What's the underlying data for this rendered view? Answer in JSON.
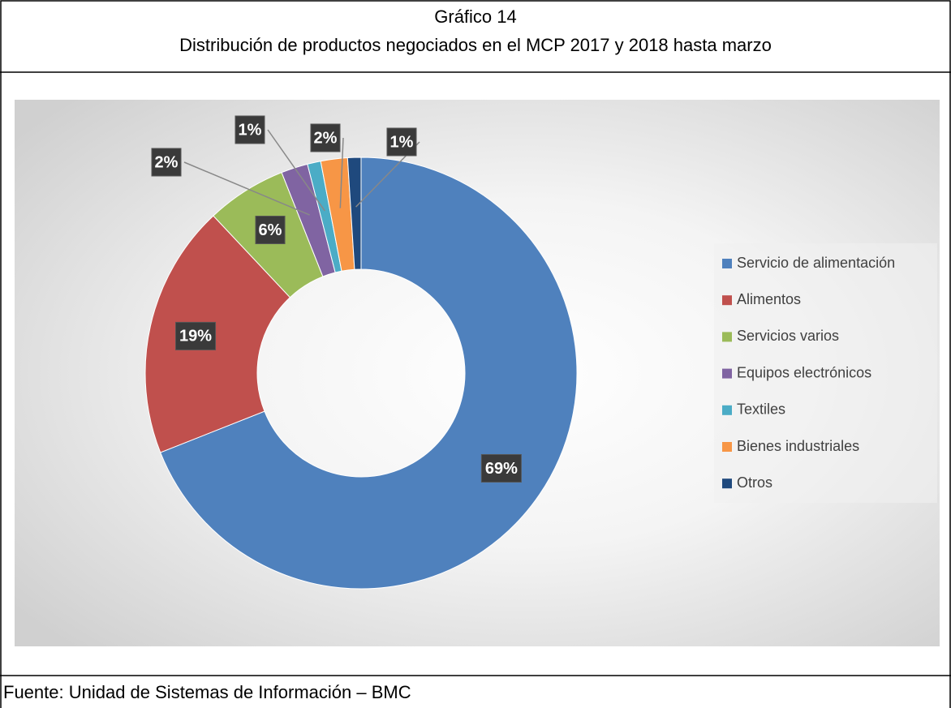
{
  "chart_data": {
    "type": "donut",
    "title": "Gráfico 14",
    "subtitle": "Distribución de productos negociados en el MCP 2017 y 2018 hasta marzo",
    "categories": [
      "Servicio de alimentación",
      "Alimentos",
      "Servicios varios",
      "Equipos electrónicos",
      "Textiles",
      "Bienes industriales",
      "Otros"
    ],
    "values": [
      69,
      19,
      6,
      2,
      1,
      2,
      1
    ],
    "value_labels": [
      "69%",
      "19%",
      "6%",
      "2%",
      "1%",
      "2%",
      "1%"
    ],
    "colors": [
      "#4f81bd",
      "#c0504d",
      "#9bbb59",
      "#8064a2",
      "#4bacc6",
      "#f79646",
      "#1f497d"
    ],
    "legend": "right",
    "source": "Fuente: Unidad de Sistemas de Información – BMC"
  }
}
